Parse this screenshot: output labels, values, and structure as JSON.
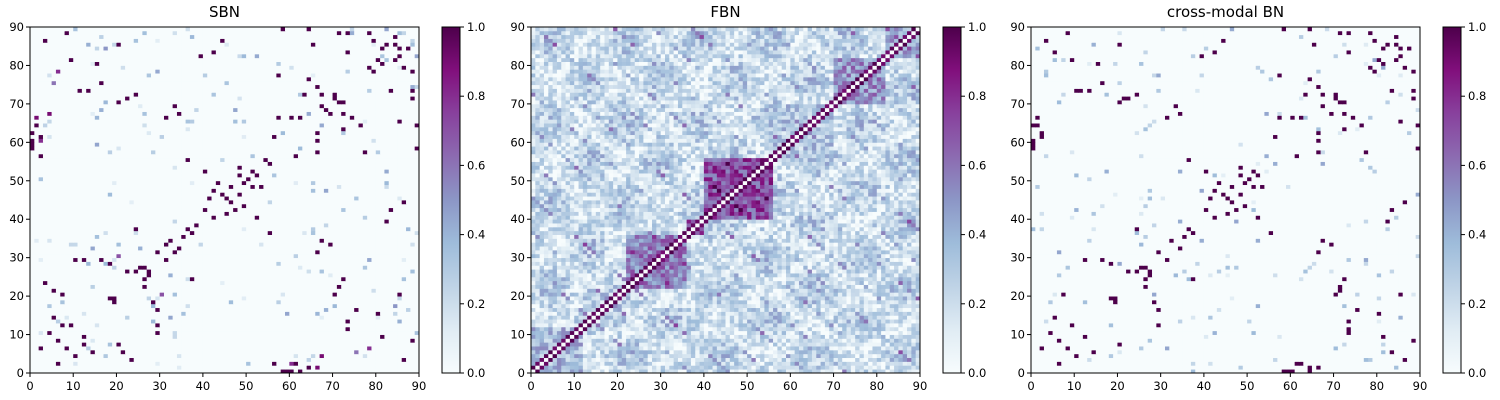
{
  "panels": [
    {
      "title": "SBN",
      "kind": "sparse",
      "seed": 11,
      "edges": [
        [
          0,
          58,
          1
        ],
        [
          0,
          62,
          1
        ],
        [
          1,
          66,
          0.9
        ],
        [
          2,
          56,
          1
        ],
        [
          3,
          86,
          1
        ],
        [
          4,
          67,
          0.9
        ],
        [
          5,
          75,
          0.6
        ],
        [
          6,
          78,
          0.8
        ],
        [
          7,
          20,
          1
        ],
        [
          8,
          88,
          1
        ],
        [
          9,
          81,
          1
        ],
        [
          10,
          29,
          1
        ],
        [
          11,
          73,
          1
        ],
        [
          12,
          9,
          1
        ],
        [
          13,
          73,
          1
        ],
        [
          14,
          5,
          1
        ],
        [
          15,
          80,
          1
        ],
        [
          16,
          29,
          1
        ],
        [
          17,
          84,
          0.5
        ],
        [
          18,
          19,
          1
        ],
        [
          19,
          19,
          1
        ],
        [
          20,
          70,
          1
        ],
        [
          21,
          5,
          1
        ],
        [
          22,
          71,
          1
        ],
        [
          23,
          3,
          1
        ],
        [
          24,
          26,
          1
        ],
        [
          25,
          27,
          1
        ],
        [
          26,
          22,
          1
        ],
        [
          27,
          26,
          1
        ],
        [
          28,
          18,
          1
        ],
        [
          29,
          12,
          1
        ],
        [
          30,
          20,
          0.7
        ],
        [
          31,
          66,
          1
        ],
        [
          32,
          34,
          1
        ],
        [
          33,
          69,
          1
        ],
        [
          34,
          67,
          1
        ],
        [
          35,
          35,
          1
        ],
        [
          36,
          37,
          1
        ],
        [
          37,
          24,
          1
        ],
        [
          38,
          38,
          1
        ],
        [
          39,
          82,
          1
        ],
        [
          40,
          42,
          1
        ],
        [
          41,
          45,
          1
        ],
        [
          42,
          83,
          1
        ],
        [
          43,
          49,
          1
        ],
        [
          44,
          86,
          1
        ],
        [
          45,
          45,
          1
        ],
        [
          46,
          48,
          1
        ],
        [
          47,
          42,
          1
        ],
        [
          48,
          51,
          1
        ],
        [
          49,
          49,
          1
        ],
        [
          50,
          50,
          1
        ],
        [
          51,
          52,
          1
        ],
        [
          52,
          40,
          1
        ],
        [
          53,
          48,
          1
        ],
        [
          54,
          55,
          1
        ],
        [
          55,
          36,
          1
        ],
        [
          56,
          61,
          1
        ],
        [
          57,
          66,
          1
        ],
        [
          58,
          90,
          1
        ],
        [
          59,
          0,
          1
        ],
        [
          60,
          0,
          1
        ],
        [
          61,
          2,
          1
        ],
        [
          62,
          66,
          1
        ],
        [
          63,
          72,
          1
        ],
        [
          64,
          1,
          1
        ],
        [
          65,
          85,
          1
        ],
        [
          66,
          60,
          1
        ],
        [
          67,
          72,
          1
        ],
        [
          68,
          68,
          1
        ],
        [
          69,
          67,
          1
        ],
        [
          70,
          72,
          1
        ],
        [
          71,
          70,
          1
        ],
        [
          72,
          24,
          1
        ],
        [
          73,
          88,
          1
        ],
        [
          74,
          66,
          1
        ],
        [
          75,
          16,
          1
        ],
        [
          76,
          64,
          1
        ],
        [
          77,
          57,
          1
        ],
        [
          78,
          88,
          1
        ],
        [
          79,
          78,
          1
        ],
        [
          80,
          81,
          1
        ],
        [
          81,
          84,
          1
        ],
        [
          82,
          85,
          1
        ],
        [
          83,
          73,
          1
        ],
        [
          84,
          85,
          1
        ],
        [
          85,
          20,
          1
        ],
        [
          86,
          79,
          1
        ],
        [
          87,
          84,
          1
        ],
        [
          88,
          71,
          1
        ],
        [
          89,
          64,
          1
        ],
        [
          2,
          60,
          0.8
        ],
        [
          6,
          2,
          1
        ],
        [
          8,
          6,
          1
        ],
        [
          10,
          4,
          1
        ],
        [
          12,
          7,
          1
        ],
        [
          29,
          31,
          1
        ],
        [
          31,
          33,
          1
        ],
        [
          44,
          46,
          1
        ],
        [
          46,
          44,
          1
        ]
      ]
    },
    {
      "title": "FBN",
      "kind": "dense",
      "seed": 29,
      "edges": []
    },
    {
      "title": "cross-modal BN",
      "kind": "sparse",
      "seed": 53,
      "edges": [
        [
          0,
          58,
          1
        ],
        [
          0,
          64,
          1
        ],
        [
          1,
          66,
          1
        ],
        [
          2,
          62,
          1
        ],
        [
          3,
          86,
          1
        ],
        [
          5,
          83,
          1
        ],
        [
          7,
          20,
          1
        ],
        [
          8,
          88,
          1
        ],
        [
          9,
          81,
          1
        ],
        [
          10,
          73,
          1
        ],
        [
          11,
          73,
          1
        ],
        [
          12,
          9,
          1
        ],
        [
          13,
          73,
          1
        ],
        [
          14,
          5,
          1
        ],
        [
          15,
          80,
          1
        ],
        [
          16,
          29,
          1
        ],
        [
          18,
          19,
          1
        ],
        [
          19,
          19,
          1
        ],
        [
          20,
          70,
          1
        ],
        [
          21,
          71,
          1
        ],
        [
          22,
          71,
          1
        ],
        [
          24,
          26,
          1
        ],
        [
          25,
          27,
          1
        ],
        [
          26,
          22,
          1
        ],
        [
          27,
          26,
          1
        ],
        [
          28,
          18,
          1
        ],
        [
          29,
          12,
          1
        ],
        [
          31,
          66,
          1
        ],
        [
          32,
          34,
          1
        ],
        [
          33,
          69,
          1
        ],
        [
          34,
          67,
          1
        ],
        [
          35,
          35,
          1
        ],
        [
          36,
          37,
          1
        ],
        [
          37,
          24,
          1
        ],
        [
          39,
          82,
          1
        ],
        [
          40,
          42,
          1
        ],
        [
          41,
          45,
          1
        ],
        [
          42,
          83,
          1
        ],
        [
          43,
          49,
          1
        ],
        [
          44,
          86,
          1
        ],
        [
          45,
          45,
          1
        ],
        [
          46,
          48,
          1
        ],
        [
          47,
          42,
          1
        ],
        [
          48,
          51,
          1
        ],
        [
          49,
          49,
          1
        ],
        [
          50,
          50,
          1
        ],
        [
          51,
          52,
          1
        ],
        [
          52,
          40,
          1
        ],
        [
          53,
          48,
          1
        ],
        [
          55,
          36,
          1
        ],
        [
          56,
          61,
          1
        ],
        [
          57,
          66,
          1
        ],
        [
          58,
          90,
          1
        ],
        [
          59,
          0,
          1
        ],
        [
          60,
          0,
          1
        ],
        [
          61,
          2,
          1
        ],
        [
          62,
          66,
          1
        ],
        [
          63,
          72,
          1
        ],
        [
          64,
          1,
          1
        ],
        [
          65,
          85,
          1
        ],
        [
          66,
          60,
          1
        ],
        [
          67,
          72,
          1
        ],
        [
          69,
          67,
          1
        ],
        [
          70,
          72,
          1
        ],
        [
          71,
          70,
          1
        ],
        [
          72,
          24,
          1
        ],
        [
          73,
          88,
          1
        ],
        [
          74,
          66,
          1
        ],
        [
          75,
          16,
          1
        ],
        [
          76,
          64,
          1
        ],
        [
          77,
          57,
          1
        ],
        [
          78,
          88,
          1
        ],
        [
          79,
          78,
          1
        ],
        [
          80,
          81,
          1
        ],
        [
          81,
          84,
          1
        ],
        [
          82,
          85,
          1
        ],
        [
          83,
          73,
          1
        ],
        [
          84,
          85,
          1
        ],
        [
          85,
          20,
          1
        ],
        [
          86,
          79,
          1
        ],
        [
          87,
          84,
          1
        ],
        [
          88,
          71,
          1
        ],
        [
          89,
          64,
          1
        ],
        [
          6,
          2,
          1
        ],
        [
          8,
          6,
          1
        ],
        [
          10,
          4,
          1
        ],
        [
          29,
          31,
          1
        ],
        [
          44,
          46,
          1
        ],
        [
          46,
          44,
          1
        ],
        [
          72,
          17,
          0.35
        ]
      ]
    }
  ],
  "chart_data": {
    "type": "heatmap",
    "layout": "three heatmaps side by side, each with its own colorbar",
    "colormap": "BuPu",
    "matrix_size": 90,
    "xlim": [
      0,
      90
    ],
    "ylim": [
      0,
      90
    ],
    "xticks": [
      "0",
      "10",
      "20",
      "30",
      "40",
      "50",
      "60",
      "70",
      "80",
      "90"
    ],
    "yticks": [
      "0",
      "10",
      "20",
      "30",
      "40",
      "50",
      "60",
      "70",
      "80",
      "90"
    ],
    "colorbar_range": [
      0,
      1
    ],
    "colorbar_ticks": [
      "0.0",
      "0.2",
      "0.4",
      "0.6",
      "0.8",
      "1.0"
    ],
    "panel_titles": [
      "SBN",
      "FBN",
      "cross-modal BN"
    ],
    "grid": false,
    "legend": "none"
  }
}
